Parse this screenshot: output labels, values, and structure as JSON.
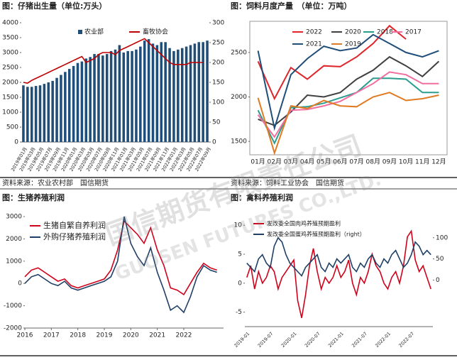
{
  "watermark": "国信期货有限责任公司",
  "watermark_en": "GUOSEN FUTURES CO.,LTD.",
  "chart_data": [
    {
      "type": "bar",
      "title": "图：仔猪出生量（单位:万头）",
      "source": "资料来源：农业农村部　国信期货",
      "categories": [
        "2019年01月",
        null,
        "2019年03月",
        null,
        "2019年05月",
        null,
        "2019年07月",
        null,
        "2019年09月",
        null,
        "2019年11月",
        null,
        "2020年01月",
        null,
        "2020年03月",
        null,
        "2020年05月",
        null,
        "2020年07月",
        null,
        "2020年09月",
        null,
        "2020年11月",
        null,
        "2021年01月",
        null,
        "2021年03月",
        null,
        "2021年05月",
        null,
        "2021年07月",
        null,
        "2021年09月",
        null,
        "2021年11月",
        null,
        "2022年01月",
        null,
        "2022年03月",
        null,
        "2022年05月",
        null,
        "2022年07月",
        null,
        "2022年09月"
      ],
      "series": [
        {
          "name": "农业部",
          "color": "#1f4e79",
          "values": [
            1900,
            1850,
            1850,
            1880,
            1900,
            1950,
            2000,
            2050,
            2150,
            2250,
            2350,
            2450,
            2550,
            2650,
            2700,
            2800,
            2850,
            2950,
            2950,
            2900,
            2950,
            3050,
            3100,
            3250,
            3000,
            3050,
            3050,
            3100,
            3200,
            3400,
            3450,
            3300,
            3250,
            3350,
            3350,
            3150,
            3050,
            3100,
            3150,
            3200,
            3250,
            3300,
            3350,
            3350,
            3400
          ]
        },
        {
          "name": "畜牧协会",
          "type": "line",
          "axis": "y2",
          "color": "#c00000",
          "values": [
            150,
            148,
            155,
            160,
            165,
            170,
            175,
            180,
            185,
            190,
            195,
            200,
            205,
            210,
            215,
            200,
            205,
            210,
            220,
            225,
            225,
            225,
            220,
            230,
            235,
            240,
            245,
            250,
            255,
            260,
            250,
            240,
            230,
            220,
            210,
            200,
            195,
            195,
            195,
            195,
            200,
            200,
            200,
            200,
            null
          ]
        }
      ],
      "ylim": [
        0,
        4000
      ],
      "yticks": [
        0,
        500,
        1000,
        1500,
        2000,
        2500,
        3000,
        3500,
        4000
      ],
      "y2lim": [
        0,
        300
      ],
      "y2ticks": [
        0,
        50,
        100,
        150,
        200,
        250,
        300
      ]
    },
    {
      "type": "line",
      "title": "图：饲料月度产量　（单位：万吨）",
      "source": "资料来源：饲料工业协会　国信期货",
      "categories": [
        "01月",
        "02月",
        "03月",
        "04月",
        "05月",
        "06月",
        "07月",
        "08月",
        "09月",
        "10月",
        "11月",
        "12月"
      ],
      "series": [
        {
          "name": "2022",
          "color": "#e0242b",
          "values": [
            2400,
            1980,
            2330,
            2200,
            2350,
            2340,
            2450,
            2600,
            2800,
            2650,
            null,
            null
          ]
        },
        {
          "name": "2020",
          "color": "#404040",
          "values": [
            1750,
            1680,
            1830,
            2020,
            2000,
            2050,
            2200,
            2300,
            2450,
            2350,
            2230,
            2400
          ]
        },
        {
          "name": "2018",
          "color": "#2a9d8f",
          "values": [
            1850,
            1480,
            1880,
            1890,
            1930,
            1990,
            2050,
            2210,
            2210,
            2200,
            2050,
            2050
          ]
        },
        {
          "name": "2017",
          "color": "#f06ea0",
          "values": [
            1800,
            1550,
            1850,
            1860,
            1900,
            1950,
            2050,
            2150,
            2280,
            2250,
            2150,
            2150
          ]
        },
        {
          "name": "2021",
          "color": "#1f4e79",
          "values": [
            2520,
            1650,
            2250,
            2430,
            2570,
            2520,
            2550,
            2700,
            2600,
            2500,
            2450,
            2520
          ]
        },
        {
          "name": "2019",
          "color": "#e07b24",
          "values": [
            1990,
            1370,
            1900,
            1870,
            1960,
            1900,
            1890,
            2000,
            2050,
            1960,
            1980,
            2020
          ]
        }
      ],
      "ylim": [
        1350,
        2850
      ],
      "yticks": [
        1500,
        2000,
        2500
      ]
    },
    {
      "type": "line",
      "title": "图：生猪养殖利润",
      "x": [
        2016,
        2016.25,
        2016.5,
        2016.75,
        2017,
        2017.25,
        2017.5,
        2017.75,
        2018,
        2018.25,
        2018.5,
        2018.75,
        2019,
        2019.25,
        2019.5,
        2019.75,
        2020,
        2020.25,
        2020.5,
        2020.75,
        2021,
        2021.25,
        2021.5,
        2021.75,
        2022,
        2022.25,
        2022.5,
        2022.75,
        2023,
        2023.25
      ],
      "series": [
        {
          "name": "生猪自繁自养利润",
          "color": "#d0021b",
          "values": [
            300,
            600,
            700,
            500,
            300,
            100,
            200,
            -100,
            -200,
            -100,
            0,
            100,
            200,
            600,
            1500,
            2800,
            2500,
            2200,
            1800,
            2500,
            1500,
            800,
            -200,
            -300,
            -500,
            0,
            500,
            900,
            700,
            600
          ]
        },
        {
          "name": "外购仔猪养殖利润",
          "color": "#1f3f66",
          "values": [
            0,
            300,
            400,
            200,
            0,
            -100,
            100,
            -200,
            -300,
            -200,
            -100,
            0,
            100,
            300,
            1000,
            3000,
            1800,
            1200,
            800,
            1600,
            500,
            -300,
            -1200,
            -1000,
            -1300,
            -600,
            300,
            800,
            600,
            500
          ]
        }
      ],
      "xlim": [
        2016,
        2023.5
      ],
      "xticks": [
        2016,
        2017,
        2018,
        2019,
        2020,
        2021,
        2022
      ],
      "ylim": [
        -2000,
        3000
      ],
      "yticks": [
        -2000,
        -1000,
        0,
        1000,
        2000,
        3000
      ]
    },
    {
      "type": "line",
      "title": "图：禽料养殖利润",
      "categories": [
        "2019-01",
        null,
        null,
        null,
        null,
        null,
        "2019-07",
        null,
        null,
        null,
        null,
        null,
        "2020-01",
        null,
        null,
        null,
        null,
        null,
        "2020-07",
        null,
        null,
        null,
        null,
        null,
        "2021-01",
        null,
        null,
        null,
        null,
        null,
        "2021-07",
        null,
        null,
        null,
        null,
        null,
        "2022-01",
        null,
        null,
        null,
        null,
        null,
        "2022-07",
        null,
        null,
        null,
        null,
        null
      ],
      "series": [
        {
          "name": "发改委全国肉鸡养殖预期盈利",
          "color": "#d0021b",
          "values": [
            1,
            3,
            -1,
            2,
            0,
            1,
            3,
            2,
            -1,
            1,
            2,
            3,
            4,
            -3,
            -6,
            -2,
            3,
            6,
            2,
            -1,
            1,
            0,
            1,
            3,
            1,
            2,
            4,
            0,
            -2,
            1,
            0,
            2,
            5,
            3,
            2,
            0,
            -1,
            1,
            2,
            0,
            3,
            8,
            9,
            4,
            2,
            3,
            1,
            -1
          ]
        },
        {
          "name": "发改委全国蛋鸡养殖预期盈利（right）",
          "axis": "y2",
          "color": "#1f3f66",
          "values": [
            40,
            30,
            20,
            50,
            60,
            40,
            30,
            80,
            100,
            90,
            60,
            40,
            30,
            20,
            10,
            30,
            40,
            50,
            60,
            30,
            20,
            40,
            30,
            50,
            40,
            50,
            60,
            30,
            20,
            40,
            30,
            50,
            60,
            40,
            30,
            50,
            40,
            60,
            70,
            50,
            30,
            40,
            60,
            90,
            80,
            60,
            70,
            60
          ]
        }
      ],
      "ylim": [
        -7.5,
        11.5
      ],
      "yticks": [
        -5,
        0,
        5,
        10
      ],
      "y2lim": [
        -110,
        150
      ],
      "y2ticks": [
        0,
        50,
        100
      ]
    }
  ]
}
